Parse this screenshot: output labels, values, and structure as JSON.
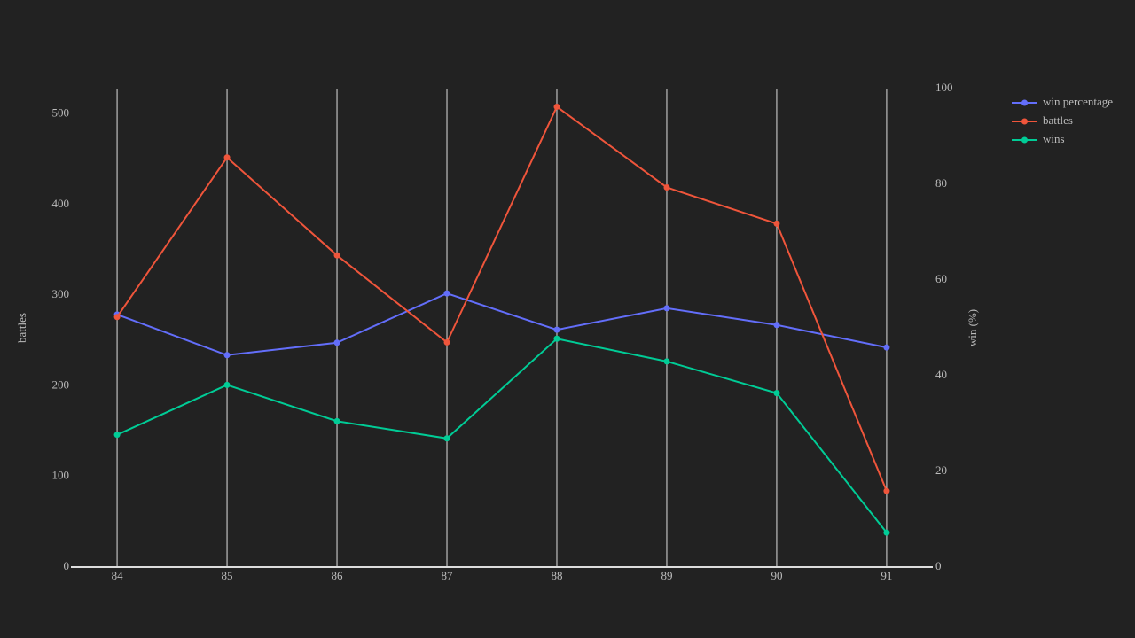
{
  "chart_data": {
    "type": "line",
    "x": [
      84,
      85,
      86,
      87,
      88,
      89,
      90,
      91
    ],
    "xlim": [
      83.58,
      91.42
    ],
    "xticks": [
      84,
      85,
      86,
      87,
      88,
      89,
      90,
      91
    ],
    "ylabel": "battles",
    "ylim": [
      0,
      528
    ],
    "yticks": [
      0,
      100,
      200,
      300,
      400,
      500
    ],
    "y2label": "win (%)",
    "y2lim": [
      0,
      100
    ],
    "y2ticks": [
      0,
      20,
      40,
      60,
      80,
      100
    ],
    "grid": "x",
    "legend": "top-right",
    "series": [
      {
        "name": "win percentage",
        "color": "#636efa",
        "axis": "y2",
        "values": [
          52.8,
          44.3,
          46.9,
          57.2,
          49.6,
          54.1,
          50.6,
          45.9
        ]
      },
      {
        "name": "battles",
        "color": "#ef553b",
        "values": [
          276,
          452,
          344,
          248,
          508,
          419,
          379,
          84
        ]
      },
      {
        "name": "wins",
        "color": "#00cc96",
        "values": [
          146,
          201,
          161,
          142,
          252,
          227,
          192,
          38
        ]
      }
    ]
  }
}
